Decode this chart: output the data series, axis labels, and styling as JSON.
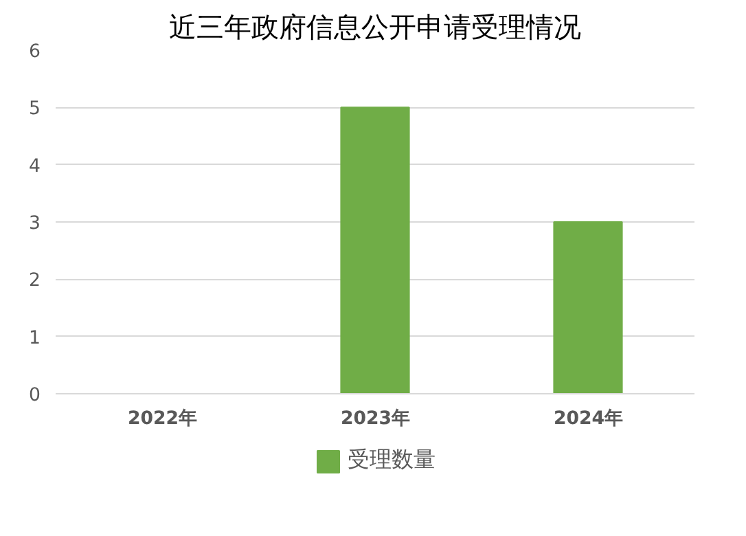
{
  "chart_data": {
    "type": "bar",
    "title": "近三年政府信息公开申请受理情况",
    "categories": [
      "2022年",
      "2023年",
      "2024年"
    ],
    "series": [
      {
        "name": "受理数量",
        "color": "#70ad47",
        "values": [
          0,
          5,
          3
        ]
      }
    ],
    "ylim": [
      0,
      6
    ],
    "yticks": [
      0,
      1,
      2,
      3,
      4,
      5,
      6
    ],
    "grid": "y",
    "legend": "bottom"
  }
}
